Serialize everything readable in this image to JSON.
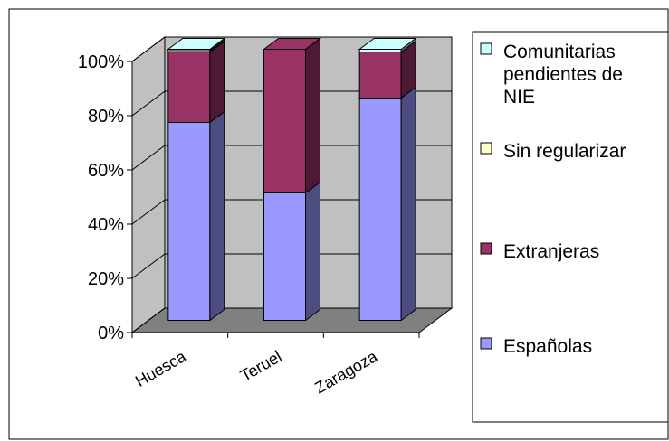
{
  "chart_data": {
    "type": "bar",
    "stacked": true,
    "percent": true,
    "categories": [
      "Huesca",
      "Teruel",
      "Zaragoza"
    ],
    "series": [
      {
        "name": "Españolas",
        "values": [
          73,
          47,
          82
        ],
        "color": "#9999FF"
      },
      {
        "name": "Extranjeras",
        "values": [
          26,
          53,
          17
        ],
        "color": "#993366"
      },
      {
        "name": "Sin regularizar",
        "values": [
          0.5,
          0,
          0
        ],
        "color": "#FFFFCC"
      },
      {
        "name": "Comunitarias pendientes de NIE",
        "values": [
          0.5,
          0,
          1
        ],
        "color": "#CCFFFF"
      }
    ],
    "legend": {
      "position": "right",
      "entries": [
        {
          "lines": [
            "Comunitarias",
            "pendientes de",
            "NIE"
          ],
          "color": "#CCFFFF"
        },
        {
          "lines": [
            "Sin regularizar"
          ],
          "color": "#FFFFCC"
        },
        {
          "lines": [
            "Extranjeras"
          ],
          "color": "#993366"
        },
        {
          "lines": [
            "Españolas"
          ],
          "color": "#9999FF"
        }
      ]
    },
    "y_ticks": [
      "0%",
      "20%",
      "40%",
      "60%",
      "80%",
      "100%"
    ],
    "ylim": [
      0,
      100
    ],
    "grid": true,
    "colors": {
      "wall": "#C0C0C0",
      "floor": "#808080"
    }
  }
}
